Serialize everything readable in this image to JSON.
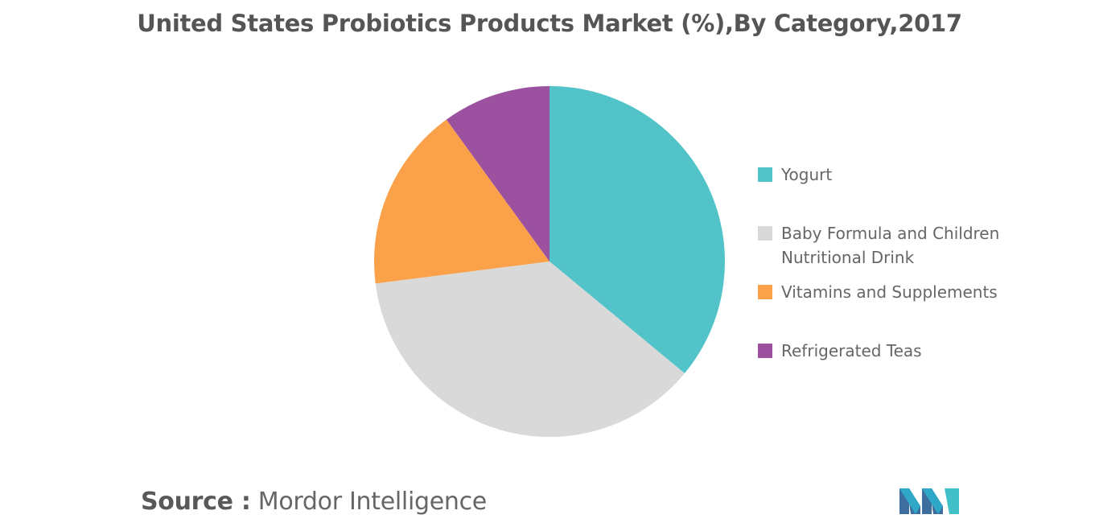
{
  "chart_data": {
    "type": "pie",
    "title": "United States Probiotics Products Market (%),By Category,2017",
    "categories": [
      "Yogurt",
      "Baby Formula and Children Nutritional Drink",
      "Vitamins and Supplements",
      "Refrigerated Teas"
    ],
    "legend_lines": [
      [
        "Yogurt"
      ],
      [
        "Baby Formula and Children",
        "Nutritional Drink"
      ],
      [
        "Vitamins and Supplements"
      ],
      [
        "Refrigerated Teas"
      ]
    ],
    "values": [
      36,
      37,
      17,
      10
    ],
    "colors": [
      "#52C4C9",
      "#D9D9D9",
      "#FAA14A",
      "#9B51A0"
    ],
    "legend_position": "right",
    "start_angle": "top, clockwise"
  },
  "footer": {
    "source_label": "Source :",
    "source_text": " Mordor Intelligence"
  }
}
